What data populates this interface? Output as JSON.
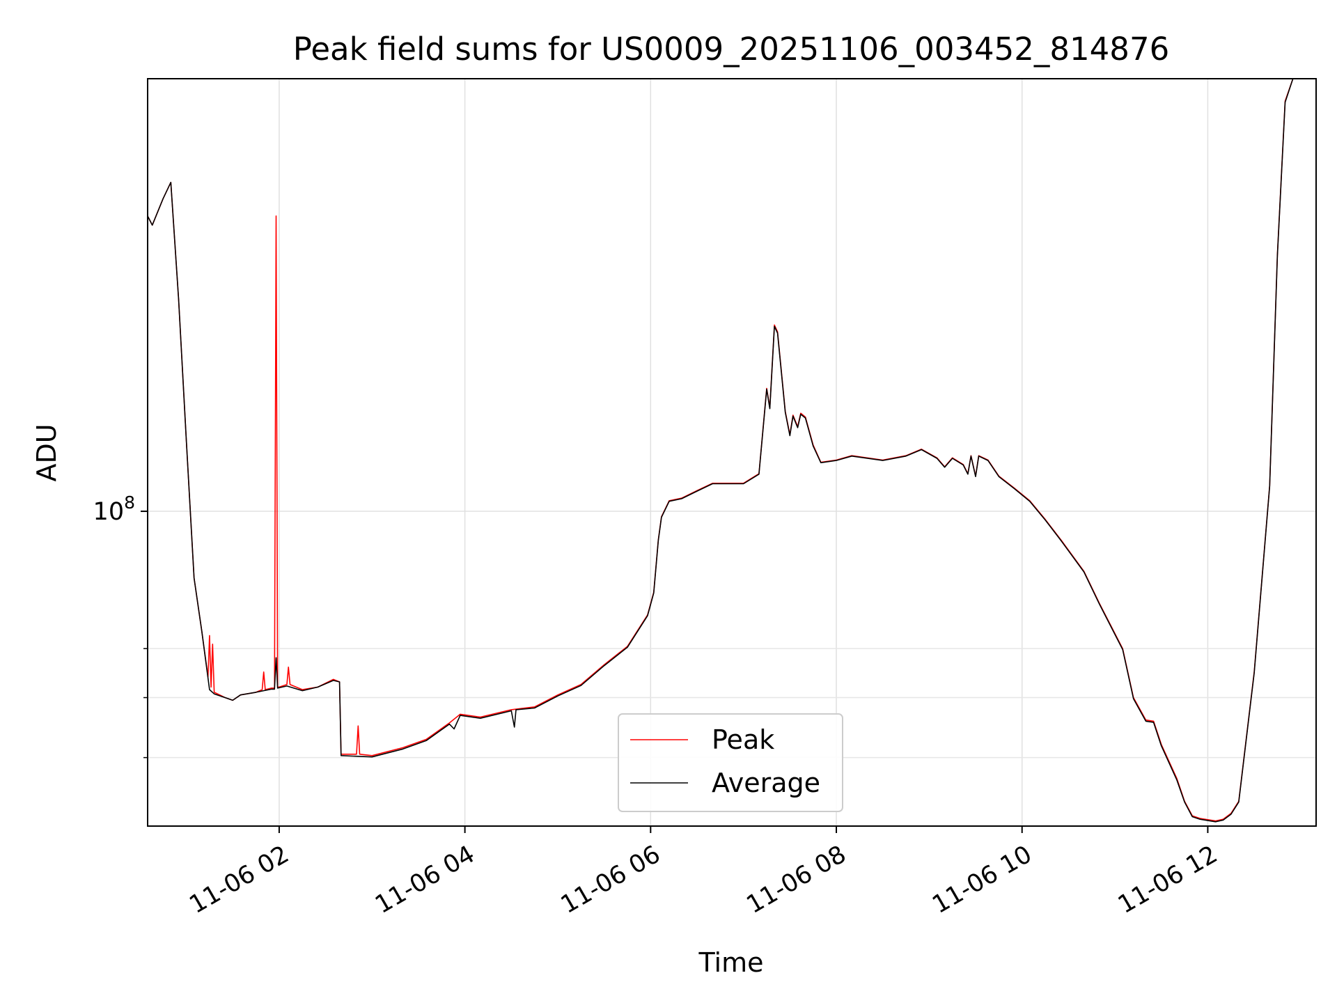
{
  "chart_data": {
    "type": "line",
    "title": "Peak field sums for US0009_20251106_003452_814876",
    "xlabel": "Time",
    "ylabel": "ADU",
    "x_axis": {
      "type": "time",
      "range": [
        "11-06 00:35",
        "11-06 13:10"
      ],
      "tick_values": [
        "11-06 02:00",
        "11-06 04:00",
        "11-06 06:00",
        "11-06 08:00",
        "11-06 10:00",
        "11-06 12:00"
      ],
      "tick_labels": [
        "11-06 02",
        "11-06 04",
        "11-06 06",
        "11-06 08",
        "11-06 10",
        "11-06 12"
      ]
    },
    "y_axis": {
      "scale": "log",
      "range": [
        31000000,
        500000000
      ],
      "major_tick_values": [
        100000000
      ],
      "major_tick_labels": [
        "10^8"
      ],
      "minor_tick_values": [
        40000000,
        50000000,
        60000000
      ]
    },
    "grid": true,
    "legend": {
      "placement": "lower-center"
    },
    "series": [
      {
        "name": "Peak",
        "color": "#ff0000",
        "points": [
          [
            "11-06 00:35",
            300000000
          ],
          [
            "11-06 00:38",
            290000000
          ],
          [
            "11-06 00:45",
            320000000
          ],
          [
            "11-06 00:50",
            340000000
          ],
          [
            "11-06 00:55",
            220000000
          ],
          [
            "11-06 01:00",
            130000000
          ],
          [
            "11-06 01:05",
            78000000
          ],
          [
            "11-06 01:10",
            64000000
          ],
          [
            "11-06 01:14",
            54000000
          ],
          [
            "11-06 01:15",
            63000000
          ],
          [
            "11-06 01:16",
            52000000
          ],
          [
            "11-06 01:17",
            61000000
          ],
          [
            "11-06 01:18",
            51000000
          ],
          [
            "11-06 01:25",
            50000000
          ],
          [
            "11-06 01:30",
            49500000
          ],
          [
            "11-06 01:35",
            50500000
          ],
          [
            "11-06 01:45",
            51000000
          ],
          [
            "11-06 01:49",
            51500000
          ],
          [
            "11-06 01:50",
            55000000
          ],
          [
            "11-06 01:51",
            51500000
          ],
          [
            "11-06 01:55",
            51800000
          ],
          [
            "11-06 01:57",
            51800000
          ],
          [
            "11-06 01:58",
            300000000
          ],
          [
            "11-06 01:59",
            52000000
          ],
          [
            "11-06 02:00",
            52000000
          ],
          [
            "11-06 02:05",
            52500000
          ],
          [
            "11-06 02:06",
            56000000
          ],
          [
            "11-06 02:07",
            52500000
          ],
          [
            "11-06 02:15",
            51500000
          ],
          [
            "11-06 02:25",
            52000000
          ],
          [
            "11-06 02:35",
            53500000
          ],
          [
            "11-06 02:39",
            53000000
          ],
          [
            "11-06 02:40",
            40500000
          ],
          [
            "11-06 02:50",
            40500000
          ],
          [
            "11-06 02:51",
            45000000
          ],
          [
            "11-06 02:52",
            40500000
          ],
          [
            "11-06 03:00",
            40300000
          ],
          [
            "11-06 03:20",
            41500000
          ],
          [
            "11-06 03:35",
            42800000
          ],
          [
            "11-06 03:50",
            45500000
          ],
          [
            "11-06 03:57",
            47000000
          ],
          [
            "11-06 04:10",
            46500000
          ],
          [
            "11-06 04:30",
            47800000
          ],
          [
            "11-06 04:45",
            48300000
          ],
          [
            "11-06 05:00",
            50500000
          ],
          [
            "11-06 05:15",
            52500000
          ],
          [
            "11-06 05:30",
            56500000
          ],
          [
            "11-06 05:45",
            60500000
          ],
          [
            "11-06 05:58",
            68000000
          ],
          [
            "11-06 06:02",
            74000000
          ],
          [
            "11-06 06:05",
            90000000
          ],
          [
            "11-06 06:07",
            98000000
          ],
          [
            "11-06 06:12",
            104000000
          ],
          [
            "11-06 06:20",
            105000000
          ],
          [
            "11-06 06:30",
            108000000
          ],
          [
            "11-06 06:40",
            111000000
          ],
          [
            "11-06 07:00",
            111000000
          ],
          [
            "11-06 07:10",
            115000000
          ],
          [
            "11-06 07:15",
            158000000
          ],
          [
            "11-06 07:17",
            147000000
          ],
          [
            "11-06 07:20",
            200000000
          ],
          [
            "11-06 07:22",
            195000000
          ],
          [
            "11-06 07:27",
            145000000
          ],
          [
            "11-06 07:30",
            133000000
          ],
          [
            "11-06 07:32",
            143000000
          ],
          [
            "11-06 07:35",
            137000000
          ],
          [
            "11-06 07:37",
            144000000
          ],
          [
            "11-06 07:40",
            142000000
          ],
          [
            "11-06 07:45",
            128000000
          ],
          [
            "11-06 07:50",
            120000000
          ],
          [
            "11-06 08:00",
            121000000
          ],
          [
            "11-06 08:10",
            123000000
          ],
          [
            "11-06 08:30",
            121000000
          ],
          [
            "11-06 08:45",
            123000000
          ],
          [
            "11-06 08:55",
            126000000
          ],
          [
            "11-06 09:05",
            122000000
          ],
          [
            "11-06 09:10",
            118000000
          ],
          [
            "11-06 09:15",
            122000000
          ],
          [
            "11-06 09:22",
            119000000
          ],
          [
            "11-06 09:25",
            115000000
          ],
          [
            "11-06 09:27",
            123000000
          ],
          [
            "11-06 09:30",
            114000000
          ],
          [
            "11-06 09:32",
            123000000
          ],
          [
            "11-06 09:38",
            121000000
          ],
          [
            "11-06 09:45",
            114000000
          ],
          [
            "11-06 09:55",
            109000000
          ],
          [
            "11-06 10:05",
            104000000
          ],
          [
            "11-06 10:15",
            97000000
          ],
          [
            "11-06 10:25",
            90000000
          ],
          [
            "11-06 10:40",
            80000000
          ],
          [
            "11-06 10:50",
            71000000
          ],
          [
            "11-06 11:05",
            60000000
          ],
          [
            "11-06 11:12",
            50000000
          ],
          [
            "11-06 11:20",
            46000000
          ],
          [
            "11-06 11:25",
            45800000
          ],
          [
            "11-06 11:30",
            42000000
          ],
          [
            "11-06 11:40",
            37000000
          ],
          [
            "11-06 11:45",
            34000000
          ],
          [
            "11-06 11:50",
            32200000
          ],
          [
            "11-06 11:55",
            31900000
          ],
          [
            "11-06 12:05",
            31600000
          ],
          [
            "11-06 12:10",
            31800000
          ],
          [
            "11-06 12:15",
            32500000
          ],
          [
            "11-06 12:20",
            34000000
          ],
          [
            "11-06 12:30",
            55000000
          ],
          [
            "11-06 12:40",
            110000000
          ],
          [
            "11-06 12:45",
            260000000
          ],
          [
            "11-06 12:50",
            460000000
          ],
          [
            "11-06 12:55",
            500000000
          ],
          [
            "11-06 13:00",
            500000000
          ]
        ]
      },
      {
        "name": "Average",
        "color": "#000000",
        "points": [
          [
            "11-06 00:35",
            300000000
          ],
          [
            "11-06 00:38",
            290000000
          ],
          [
            "11-06 00:45",
            320000000
          ],
          [
            "11-06 00:50",
            340000000
          ],
          [
            "11-06 00:55",
            220000000
          ],
          [
            "11-06 01:00",
            130000000
          ],
          [
            "11-06 01:05",
            78000000
          ],
          [
            "11-06 01:10",
            64000000
          ],
          [
            "11-06 01:15",
            51500000
          ],
          [
            "11-06 01:18",
            50700000
          ],
          [
            "11-06 01:25",
            50000000
          ],
          [
            "11-06 01:30",
            49500000
          ],
          [
            "11-06 01:35",
            50500000
          ],
          [
            "11-06 01:45",
            51000000
          ],
          [
            "11-06 01:55",
            51600000
          ],
          [
            "11-06 01:57",
            51600000
          ],
          [
            "11-06 01:58",
            58000000
          ],
          [
            "11-06 01:59",
            51800000
          ],
          [
            "11-06 02:05",
            52200000
          ],
          [
            "11-06 02:15",
            51300000
          ],
          [
            "11-06 02:25",
            52000000
          ],
          [
            "11-06 02:35",
            53300000
          ],
          [
            "11-06 02:39",
            53000000
          ],
          [
            "11-06 02:40",
            40300000
          ],
          [
            "11-06 03:00",
            40100000
          ],
          [
            "11-06 03:20",
            41300000
          ],
          [
            "11-06 03:35",
            42600000
          ],
          [
            "11-06 03:50",
            45300000
          ],
          [
            "11-06 03:53",
            44500000
          ],
          [
            "11-06 03:57",
            46800000
          ],
          [
            "11-06 04:10",
            46300000
          ],
          [
            "11-06 04:30",
            47600000
          ],
          [
            "11-06 04:32",
            44800000
          ],
          [
            "11-06 04:33",
            47800000
          ],
          [
            "11-06 04:45",
            48100000
          ],
          [
            "11-06 05:00",
            50300000
          ],
          [
            "11-06 05:15",
            52300000
          ],
          [
            "11-06 05:30",
            56300000
          ],
          [
            "11-06 05:45",
            60300000
          ],
          [
            "11-06 05:58",
            67800000
          ],
          [
            "11-06 06:02",
            73800000
          ],
          [
            "11-06 06:05",
            89800000
          ],
          [
            "11-06 06:07",
            97800000
          ],
          [
            "11-06 06:12",
            103800000
          ],
          [
            "11-06 06:20",
            104800000
          ],
          [
            "11-06 06:30",
            107800000
          ],
          [
            "11-06 06:40",
            110800000
          ],
          [
            "11-06 07:00",
            110800000
          ],
          [
            "11-06 07:10",
            114800000
          ],
          [
            "11-06 07:15",
            157500000
          ],
          [
            "11-06 07:17",
            146500000
          ],
          [
            "11-06 07:20",
            199000000
          ],
          [
            "11-06 07:22",
            194000000
          ],
          [
            "11-06 07:27",
            144500000
          ],
          [
            "11-06 07:30",
            132500000
          ],
          [
            "11-06 07:32",
            142500000
          ],
          [
            "11-06 07:35",
            136500000
          ],
          [
            "11-06 07:37",
            143500000
          ],
          [
            "11-06 07:40",
            141500000
          ],
          [
            "11-06 07:45",
            127500000
          ],
          [
            "11-06 07:50",
            119800000
          ],
          [
            "11-06 08:00",
            120800000
          ],
          [
            "11-06 08:10",
            122800000
          ],
          [
            "11-06 08:30",
            120800000
          ],
          [
            "11-06 08:45",
            122800000
          ],
          [
            "11-06 08:55",
            125800000
          ],
          [
            "11-06 09:05",
            121800000
          ],
          [
            "11-06 09:10",
            117800000
          ],
          [
            "11-06 09:15",
            121800000
          ],
          [
            "11-06 09:22",
            118800000
          ],
          [
            "11-06 09:25",
            114800000
          ],
          [
            "11-06 09:27",
            122800000
          ],
          [
            "11-06 09:30",
            113800000
          ],
          [
            "11-06 09:32",
            122800000
          ],
          [
            "11-06 09:38",
            120800000
          ],
          [
            "11-06 09:45",
            113800000
          ],
          [
            "11-06 09:55",
            108800000
          ],
          [
            "11-06 10:05",
            103800000
          ],
          [
            "11-06 10:15",
            96800000
          ],
          [
            "11-06 10:25",
            89800000
          ],
          [
            "11-06 10:40",
            79800000
          ],
          [
            "11-06 10:50",
            70800000
          ],
          [
            "11-06 11:05",
            59800000
          ],
          [
            "11-06 11:12",
            49800000
          ],
          [
            "11-06 11:20",
            45800000
          ],
          [
            "11-06 11:25",
            45600000
          ],
          [
            "11-06 11:30",
            41800000
          ],
          [
            "11-06 11:40",
            36800000
          ],
          [
            "11-06 11:45",
            33900000
          ],
          [
            "11-06 11:50",
            32100000
          ],
          [
            "11-06 11:55",
            31800000
          ],
          [
            "11-06 12:05",
            31500000
          ],
          [
            "11-06 12:10",
            31700000
          ],
          [
            "11-06 12:15",
            32400000
          ],
          [
            "11-06 12:20",
            33900000
          ],
          [
            "11-06 12:30",
            54800000
          ],
          [
            "11-06 12:40",
            109800000
          ],
          [
            "11-06 12:45",
            259000000
          ],
          [
            "11-06 12:50",
            458000000
          ],
          [
            "11-06 12:55",
            500000000
          ],
          [
            "11-06 13:00",
            500000000
          ]
        ]
      }
    ]
  }
}
